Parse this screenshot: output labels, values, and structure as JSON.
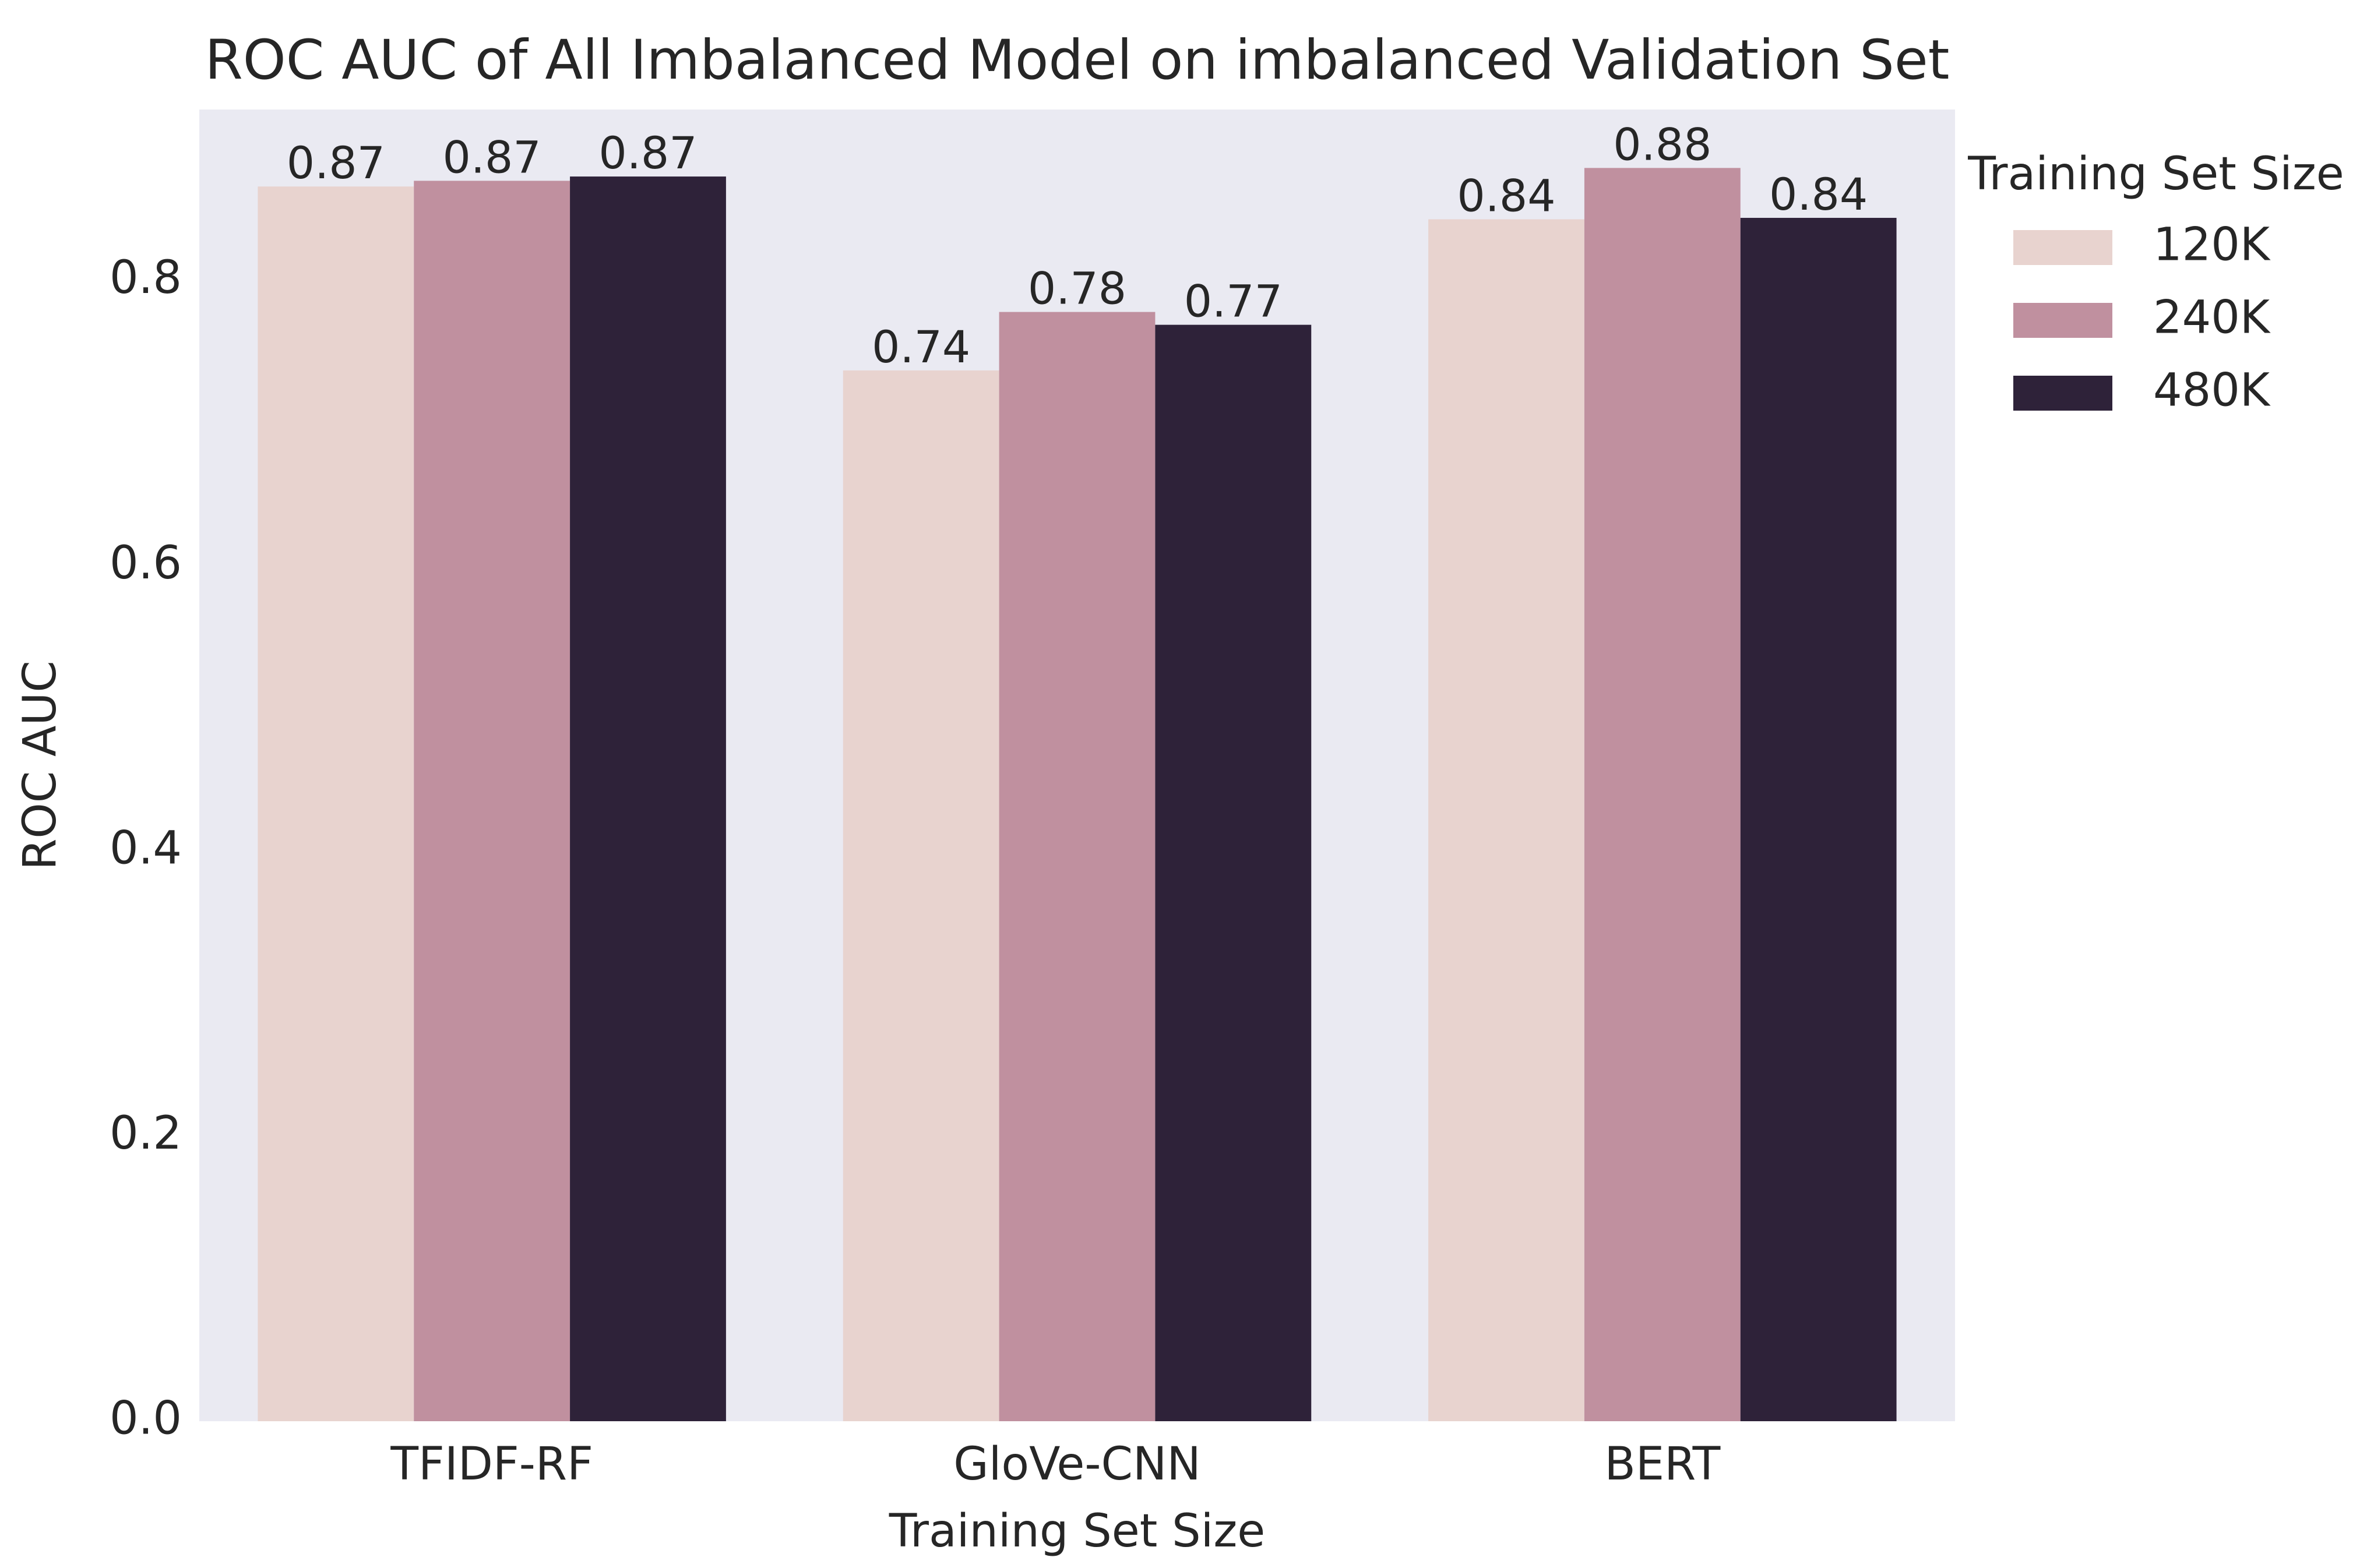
{
  "chart_data": {
    "type": "bar",
    "title": "ROC AUC of All Imbalanced Model on imbalanced Validation Set",
    "xlabel": "Training Set Size",
    "ylabel": "ROC AUC",
    "categories": [
      "TFIDF-RF",
      "GloVe-CNN",
      "BERT"
    ],
    "ylim": [
      0,
      0.92
    ],
    "yticks": [
      0.0,
      0.2,
      0.4,
      0.6,
      0.8
    ],
    "ytick_labels": [
      "0.0",
      "0.2",
      "0.4",
      "0.6",
      "0.8"
    ],
    "grid": false,
    "legend": {
      "title": "Training Set Size",
      "placement": "outside-top-right"
    },
    "series": [
      {
        "name": "120K",
        "color": "#e8d3cf",
        "values": [
          0.866,
          0.737,
          0.843
        ],
        "labels": [
          "0.87",
          "0.74",
          "0.84"
        ]
      },
      {
        "name": "240K",
        "color": "#c0909f",
        "values": [
          0.87,
          0.778,
          0.879
        ],
        "labels": [
          "0.87",
          "0.78",
          "0.88"
        ]
      },
      {
        "name": "480K",
        "color": "#2e2239",
        "values": [
          0.873,
          0.769,
          0.844
        ],
        "labels": [
          "0.87",
          "0.77",
          "0.84"
        ]
      }
    ],
    "colors": {
      "plot_background": "#eaeaf2",
      "text": "#262626"
    }
  }
}
